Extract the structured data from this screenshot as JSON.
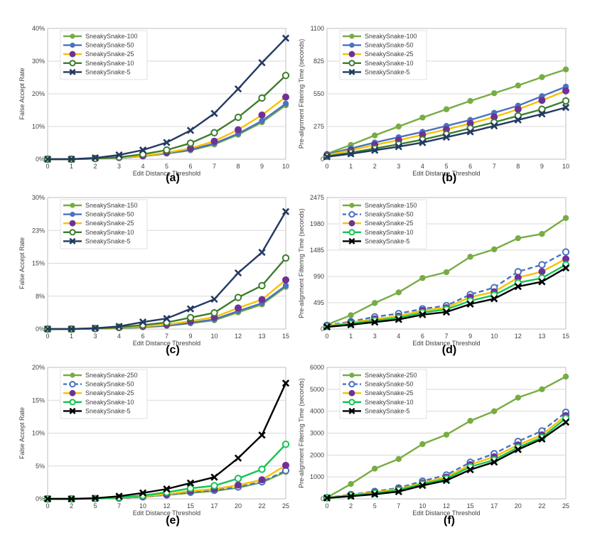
{
  "series_colors": {
    "green": "#77ac43",
    "blue": "#4a73bf",
    "yellow": "#f9c100",
    "purple": "#6f3197",
    "darkgreen": "#3e7d2c",
    "brightgreen": "#14c452",
    "navy": "#233a62",
    "black": "#000000"
  },
  "chart_data": [
    {
      "panel_label": "(a)",
      "type": "line",
      "ylabel": "False Accept Rate",
      "xlabel": "Edit Distance Threshold",
      "categories": [
        "0",
        "1",
        "2",
        "3",
        "4",
        "5",
        "6",
        "7",
        "8",
        "9",
        "10"
      ],
      "ylim": [
        0,
        40
      ],
      "yticks": [
        "0%",
        "10%",
        "20%",
        "30%",
        "40%"
      ],
      "ytick_values": [
        0,
        10,
        20,
        30,
        40
      ],
      "legend_position": "top-left",
      "series": [
        {
          "name": "SneakySnake-100",
          "color": "green",
          "marker": "filled",
          "dashed": false,
          "values": [
            0,
            0,
            0.2,
            0.4,
            0.9,
            1.7,
            2.7,
            4.5,
            7.5,
            11.3,
            16.5
          ]
        },
        {
          "name": "SneakySnake-50",
          "color": "blue",
          "marker": "filled",
          "dashed": false,
          "values": [
            0,
            0,
            0.2,
            0.4,
            0.9,
            1.8,
            2.9,
            4.8,
            7.8,
            11.7,
            17.0
          ]
        },
        {
          "name": "SneakySnake-25",
          "color": "yellow",
          "marker": "filled-purple",
          "dashed": false,
          "values": [
            0,
            0,
            0.2,
            0.5,
            1.0,
            2.0,
            3.3,
            5.5,
            9.0,
            13.5,
            19.0
          ]
        },
        {
          "name": "SneakySnake-10",
          "color": "darkgreen",
          "marker": "hollow",
          "dashed": false,
          "values": [
            0,
            0,
            0.2,
            0.6,
            1.5,
            2.8,
            4.9,
            8.1,
            12.8,
            18.7,
            25.6
          ]
        },
        {
          "name": "SneakySnake-5",
          "color": "navy",
          "marker": "x",
          "dashed": false,
          "values": [
            0,
            0,
            0.4,
            1.3,
            2.8,
            5.1,
            8.8,
            14.0,
            21.5,
            29.5,
            37.0
          ]
        }
      ]
    },
    {
      "panel_label": "(b)",
      "type": "line",
      "ylabel": "Pre-alignment Filtering Time (seconds)",
      "xlabel": "Edit Distance Threshold",
      "categories": [
        "0",
        "1",
        "2",
        "3",
        "4",
        "5",
        "6",
        "7",
        "8",
        "9",
        "10"
      ],
      "ylim": [
        0,
        1100
      ],
      "yticks": [
        "0",
        "275",
        "550",
        "825",
        "1100"
      ],
      "ytick_values": [
        0,
        275,
        550,
        825,
        1100
      ],
      "legend_position": "top-left",
      "series": [
        {
          "name": "SneakySnake-100",
          "color": "green",
          "marker": "filled",
          "dashed": false,
          "values": [
            45,
            120,
            200,
            275,
            350,
            420,
            490,
            555,
            620,
            690,
            755
          ]
        },
        {
          "name": "SneakySnake-50",
          "color": "blue",
          "marker": "filled",
          "dashed": false,
          "values": [
            40,
            90,
            140,
            185,
            230,
            280,
            330,
            390,
            450,
            530,
            610
          ]
        },
        {
          "name": "SneakySnake-25",
          "color": "yellow",
          "marker": "filled-purple",
          "dashed": false,
          "values": [
            35,
            75,
            120,
            160,
            205,
            250,
            300,
            355,
            420,
            495,
            575
          ]
        },
        {
          "name": "SneakySnake-10",
          "color": "darkgreen",
          "marker": "hollow",
          "dashed": false,
          "values": [
            25,
            55,
            90,
            125,
            165,
            210,
            260,
            310,
            365,
            420,
            490
          ]
        },
        {
          "name": "SneakySnake-5",
          "color": "navy",
          "marker": "x",
          "dashed": false,
          "values": [
            20,
            45,
            75,
            105,
            140,
            185,
            230,
            280,
            330,
            380,
            435
          ]
        }
      ]
    },
    {
      "panel_label": "(c)",
      "type": "line",
      "ylabel": "False Accept Rate",
      "xlabel": "Edit Distance Threshold",
      "categories": [
        "0",
        "1",
        "3",
        "4",
        "6",
        "7",
        "9",
        "10",
        "12",
        "13",
        "15"
      ],
      "ylim": [
        0,
        30
      ],
      "yticks": [
        "0%",
        "8%",
        "15%",
        "23%",
        "30%"
      ],
      "ytick_values": [
        0,
        7.5,
        15,
        22.5,
        30
      ],
      "legend_position": "top-left",
      "series": [
        {
          "name": "SneakySnake-150",
          "color": "green",
          "marker": "filled",
          "dashed": false,
          "values": [
            0,
            0,
            0.1,
            0.2,
            0.4,
            0.7,
            1.3,
            2.0,
            3.8,
            5.6,
            9.6
          ]
        },
        {
          "name": "SneakySnake-50",
          "color": "blue",
          "marker": "filled",
          "dashed": false,
          "values": [
            0,
            0,
            0.1,
            0.2,
            0.5,
            0.8,
            1.4,
            2.2,
            4.1,
            5.9,
            9.9
          ]
        },
        {
          "name": "SneakySnake-25",
          "color": "yellow",
          "marker": "filled-purple",
          "dashed": false,
          "values": [
            0,
            0,
            0.1,
            0.3,
            0.6,
            1.0,
            1.8,
            2.7,
            4.8,
            6.7,
            11.2
          ]
        },
        {
          "name": "SneakySnake-10",
          "color": "darkgreen",
          "marker": "hollow",
          "dashed": false,
          "values": [
            0,
            0,
            0.1,
            0.4,
            0.9,
            1.5,
            2.6,
            3.7,
            7.2,
            9.9,
            16.2
          ]
        },
        {
          "name": "SneakySnake-5",
          "color": "navy",
          "marker": "x",
          "dashed": false,
          "values": [
            0,
            0,
            0.2,
            0.6,
            1.6,
            2.4,
            4.6,
            6.8,
            12.8,
            17.5,
            26.8
          ]
        }
      ]
    },
    {
      "panel_label": "(d)",
      "type": "line",
      "ylabel": "Pre-alignment Filtering Time (seconds)",
      "xlabel": "Edit Distance Threshold",
      "categories": [
        "0",
        "1",
        "3",
        "4",
        "6",
        "7",
        "9",
        "10",
        "12",
        "13",
        "15"
      ],
      "ylim": [
        0,
        2475
      ],
      "yticks": [
        "0",
        "495",
        "990",
        "1485",
        "1980",
        "2475"
      ],
      "ytick_values": [
        0,
        495,
        990,
        1485,
        1980,
        2475
      ],
      "legend_position": "top-left",
      "series": [
        {
          "name": "SneakySnake-150",
          "color": "green",
          "marker": "filled",
          "dashed": false,
          "values": [
            80,
            260,
            490,
            690,
            960,
            1070,
            1360,
            1500,
            1710,
            1790,
            2090
          ]
        },
        {
          "name": "SneakySnake-50",
          "color": "blue",
          "marker": "hollow",
          "dashed": true,
          "values": [
            70,
            140,
            230,
            290,
            380,
            440,
            650,
            780,
            1080,
            1210,
            1450
          ]
        },
        {
          "name": "SneakySnake-25",
          "color": "yellow",
          "marker": "filled-purple",
          "dashed": false,
          "values": [
            60,
            120,
            190,
            240,
            350,
            400,
            600,
            700,
            970,
            1080,
            1320
          ]
        },
        {
          "name": "SneakySnake-10",
          "color": "brightgreen",
          "marker": "hollow",
          "dashed": false,
          "values": [
            50,
            100,
            160,
            210,
            310,
            370,
            530,
            640,
            870,
            960,
            1210
          ]
        },
        {
          "name": "SneakySnake-5",
          "color": "black",
          "marker": "x",
          "dashed": false,
          "values": [
            40,
            80,
            130,
            180,
            270,
            320,
            470,
            570,
            800,
            890,
            1150
          ]
        }
      ]
    },
    {
      "panel_label": "(e)",
      "type": "line",
      "ylabel": "False Accept Rate",
      "xlabel": "Edit Distance Threshold",
      "categories": [
        "0",
        "2",
        "5",
        "7",
        "10",
        "12",
        "15",
        "17",
        "20",
        "22",
        "25"
      ],
      "ylim": [
        0,
        20
      ],
      "yticks": [
        "0%",
        "5%",
        "10%",
        "15%",
        "20%"
      ],
      "ytick_values": [
        0,
        5,
        10,
        15,
        20
      ],
      "legend_position": "top-left",
      "series": [
        {
          "name": "SneakySnake-250",
          "color": "green",
          "marker": "filled",
          "dashed": false,
          "values": [
            0,
            0,
            0.05,
            0.1,
            0.3,
            0.6,
            0.9,
            1.2,
            1.7,
            2.5,
            4.1
          ]
        },
        {
          "name": "SneakySnake-50",
          "color": "blue",
          "marker": "hollow",
          "dashed": true,
          "values": [
            0,
            0,
            0.05,
            0.1,
            0.3,
            0.6,
            1.0,
            1.3,
            1.8,
            2.6,
            4.3
          ]
        },
        {
          "name": "SneakySnake-25",
          "color": "yellow",
          "marker": "filled-purple",
          "dashed": false,
          "values": [
            0,
            0,
            0.05,
            0.15,
            0.4,
            0.7,
            1.2,
            1.5,
            2.1,
            2.9,
            5.1
          ]
        },
        {
          "name": "SneakySnake-10",
          "color": "brightgreen",
          "marker": "hollow",
          "dashed": false,
          "values": [
            0,
            0,
            0.05,
            0.2,
            0.5,
            1.0,
            1.6,
            2.0,
            3.1,
            4.5,
            8.3
          ]
        },
        {
          "name": "SneakySnake-5",
          "color": "black",
          "marker": "x",
          "dashed": false,
          "values": [
            0,
            0,
            0.1,
            0.4,
            0.9,
            1.5,
            2.4,
            3.3,
            6.2,
            9.7,
            17.6
          ]
        }
      ]
    },
    {
      "panel_label": "(f)",
      "type": "line",
      "ylabel": "Pre-alignment Filtering Time (seconds)",
      "xlabel": "Edit Distance Threshold",
      "categories": [
        "0",
        "2",
        "5",
        "7",
        "10",
        "12",
        "15",
        "17",
        "20",
        "22",
        "25"
      ],
      "ylim": [
        0,
        6000
      ],
      "yticks": [
        "0",
        "1000",
        "2000",
        "3000",
        "4000",
        "5000",
        "6000"
      ],
      "ytick_values": [
        0,
        1000,
        2000,
        3000,
        4000,
        5000,
        6000
      ],
      "legend_position": "top-left",
      "series": [
        {
          "name": "SneakySnake-250",
          "color": "green",
          "marker": "filled",
          "dashed": false,
          "values": [
            60,
            680,
            1380,
            1820,
            2500,
            2930,
            3560,
            4000,
            4620,
            5000,
            5580
          ]
        },
        {
          "name": "SneakySnake-50",
          "color": "blue",
          "marker": "hollow",
          "dashed": true,
          "values": [
            55,
            200,
            340,
            500,
            810,
            1090,
            1670,
            2060,
            2620,
            3100,
            3950
          ]
        },
        {
          "name": "SneakySnake-25",
          "color": "yellow",
          "marker": "filled-purple",
          "dashed": false,
          "values": [
            50,
            180,
            300,
            450,
            730,
            990,
            1560,
            1920,
            2460,
            2920,
            3800
          ]
        },
        {
          "name": "SneakySnake-10",
          "color": "brightgreen",
          "marker": "hollow",
          "dashed": false,
          "values": [
            45,
            150,
            260,
            400,
            680,
            920,
            1460,
            1780,
            2350,
            2800,
            3680
          ]
        },
        {
          "name": "SneakySnake-5",
          "color": "black",
          "marker": "x",
          "dashed": false,
          "values": [
            40,
            120,
            210,
            330,
            610,
            840,
            1330,
            1680,
            2250,
            2730,
            3500
          ]
        }
      ]
    }
  ]
}
